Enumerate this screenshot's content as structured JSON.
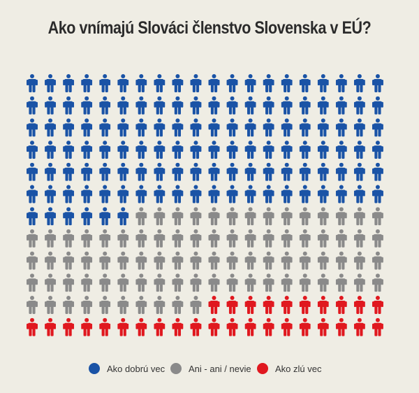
{
  "chart_data": {
    "type": "pictogram",
    "title": "Ako vnímajú Slováci členstvo Slovenska v EÚ?",
    "grid": {
      "columns": 20,
      "rows": 12
    },
    "series": [
      {
        "name": "Ako dobrú vec",
        "count": 126,
        "color": "#1a53a6"
      },
      {
        "name": "Ani - ani / nevie",
        "count": 84,
        "color": "#8a8a8a"
      },
      {
        "name": "Ako zlú vec",
        "count": 30,
        "color": "#e0181f"
      }
    ]
  }
}
